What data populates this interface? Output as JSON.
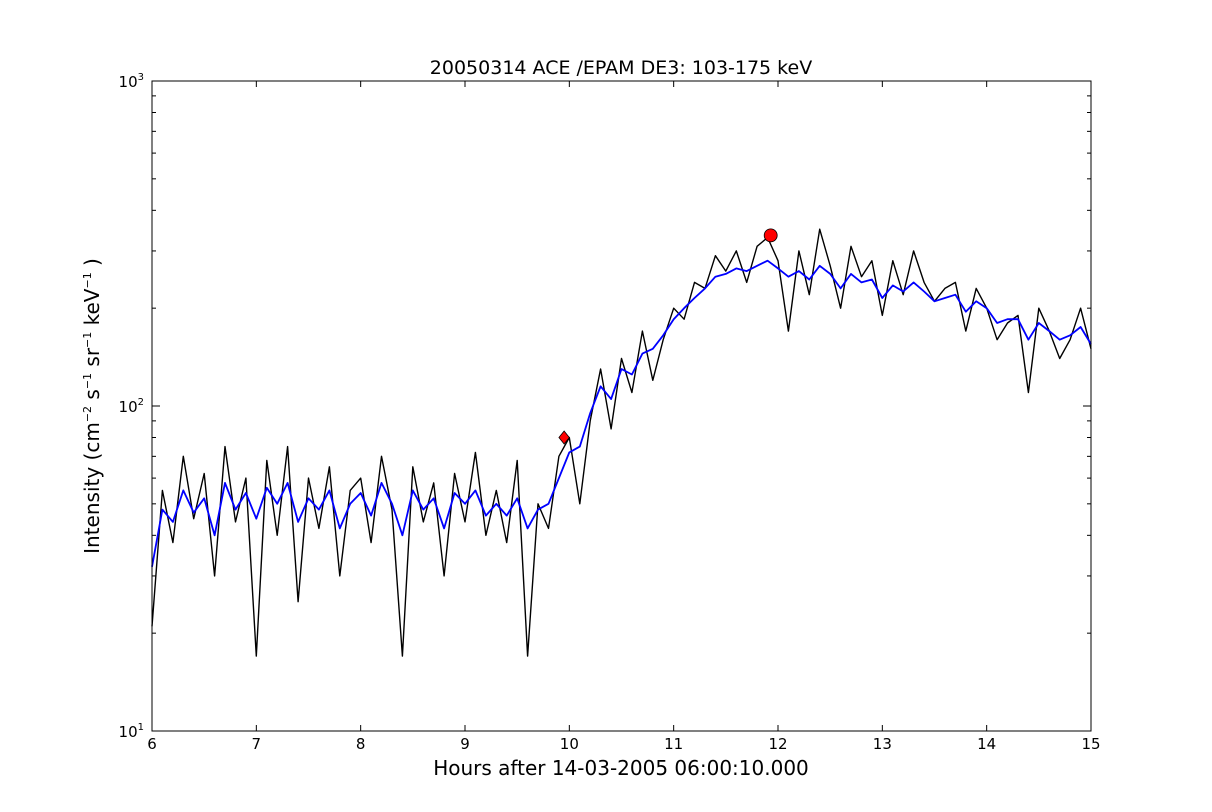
{
  "chart_data": {
    "type": "line",
    "title": "20050314 ACE /EPAM DE3: 103-175 keV",
    "xlabel": "Hours after 14-03-2005 06:00:10.000",
    "ylabel": {
      "prefix": "Intensity (cm",
      "parts": [
        {
          "sup": "−2",
          "text": " s"
        },
        {
          "sup": "−1",
          "text": " sr"
        },
        {
          "sup": "−1",
          "text": " keV"
        },
        {
          "sup": "−1",
          "text": " )"
        }
      ]
    },
    "xlim": [
      6,
      15
    ],
    "ylim": [
      10,
      1000
    ],
    "yscale": "log",
    "xticks": [
      6,
      7,
      8,
      9,
      10,
      11,
      12,
      13,
      14,
      15
    ],
    "xtick_labels": [
      "6",
      "7",
      "8",
      "9",
      "10",
      "11",
      "12",
      "13",
      "14",
      "15"
    ],
    "yticks": [
      {
        "base": "10",
        "exp": "1",
        "value": 10
      },
      {
        "base": "10",
        "exp": "2",
        "value": 100
      },
      {
        "base": "10",
        "exp": "3",
        "value": 1000
      }
    ],
    "grid": false,
    "series": [
      {
        "style": "raw",
        "color": "#000000",
        "x": [
          6.0,
          6.1,
          6.2,
          6.3,
          6.4,
          6.5,
          6.6,
          6.7,
          6.8,
          6.9,
          7.0,
          7.1,
          7.2,
          7.3,
          7.4,
          7.5,
          7.6,
          7.7,
          7.8,
          7.9,
          8.0,
          8.1,
          8.2,
          8.3,
          8.4,
          8.5,
          8.6,
          8.7,
          8.8,
          8.9,
          9.0,
          9.1,
          9.2,
          9.3,
          9.4,
          9.5,
          9.6,
          9.7,
          9.8,
          9.9,
          10.0,
          10.1,
          10.2,
          10.3,
          10.4,
          10.5,
          10.6,
          10.7,
          10.8,
          10.9,
          11.0,
          11.1,
          11.2,
          11.3,
          11.4,
          11.5,
          11.6,
          11.7,
          11.8,
          11.9,
          12.0,
          12.1,
          12.2,
          12.3,
          12.4,
          12.5,
          12.6,
          12.7,
          12.8,
          12.9,
          13.0,
          13.1,
          13.2,
          13.3,
          13.4,
          13.5,
          13.6,
          13.7,
          13.8,
          13.9,
          14.0,
          14.1,
          14.2,
          14.3,
          14.4,
          14.5,
          14.6,
          14.7,
          14.8,
          14.9,
          15.0
        ],
        "y": [
          21,
          55,
          38,
          70,
          45,
          62,
          30,
          75,
          44,
          60,
          17,
          68,
          40,
          75,
          25,
          60,
          42,
          65,
          30,
          55,
          60,
          38,
          70,
          48,
          17,
          65,
          44,
          58,
          30,
          62,
          44,
          72,
          40,
          55,
          38,
          68,
          17,
          50,
          42,
          70,
          80,
          50,
          90,
          130,
          85,
          140,
          110,
          170,
          120,
          160,
          200,
          185,
          240,
          230,
          290,
          260,
          300,
          240,
          310,
          330,
          280,
          170,
          300,
          220,
          350,
          270,
          200,
          310,
          250,
          280,
          190,
          280,
          220,
          300,
          240,
          210,
          230,
          240,
          170,
          230,
          200,
          160,
          180,
          190,
          110,
          200,
          170,
          140,
          160,
          200,
          150
        ]
      },
      {
        "style": "smoothed",
        "color": "#0000ff",
        "x": [
          6.0,
          6.1,
          6.2,
          6.3,
          6.4,
          6.5,
          6.6,
          6.7,
          6.8,
          6.9,
          7.0,
          7.1,
          7.2,
          7.3,
          7.4,
          7.5,
          7.6,
          7.7,
          7.8,
          7.9,
          8.0,
          8.1,
          8.2,
          8.3,
          8.4,
          8.5,
          8.6,
          8.7,
          8.8,
          8.9,
          9.0,
          9.1,
          9.2,
          9.3,
          9.4,
          9.5,
          9.6,
          9.7,
          9.8,
          9.9,
          10.0,
          10.1,
          10.2,
          10.3,
          10.4,
          10.5,
          10.6,
          10.7,
          10.8,
          10.9,
          11.0,
          11.1,
          11.2,
          11.3,
          11.4,
          11.5,
          11.6,
          11.7,
          11.8,
          11.9,
          12.0,
          12.1,
          12.2,
          12.3,
          12.4,
          12.5,
          12.6,
          12.7,
          12.8,
          12.9,
          13.0,
          13.1,
          13.2,
          13.3,
          13.4,
          13.5,
          13.6,
          13.7,
          13.8,
          13.9,
          14.0,
          14.1,
          14.2,
          14.3,
          14.4,
          14.5,
          14.6,
          14.7,
          14.8,
          14.9,
          15.0
        ],
        "y": [
          32,
          48,
          44,
          55,
          47,
          52,
          40,
          58,
          48,
          54,
          45,
          56,
          50,
          58,
          44,
          52,
          48,
          55,
          42,
          50,
          54,
          46,
          58,
          50,
          40,
          55,
          48,
          52,
          42,
          54,
          50,
          55,
          46,
          50,
          46,
          52,
          42,
          48,
          50,
          60,
          72,
          75,
          95,
          115,
          105,
          130,
          125,
          145,
          150,
          165,
          185,
          200,
          215,
          230,
          250,
          255,
          265,
          260,
          270,
          280,
          265,
          250,
          260,
          245,
          270,
          255,
          230,
          255,
          240,
          245,
          215,
          235,
          225,
          240,
          225,
          210,
          215,
          220,
          195,
          210,
          200,
          180,
          185,
          185,
          160,
          180,
          170,
          160,
          165,
          175,
          155
        ]
      }
    ],
    "markers": [
      {
        "x": 9.95,
        "y": 80,
        "shape": "diamond",
        "color": "#ff0000"
      },
      {
        "x": 11.93,
        "y": 335,
        "shape": "circle",
        "color": "#ff0000"
      }
    ]
  }
}
